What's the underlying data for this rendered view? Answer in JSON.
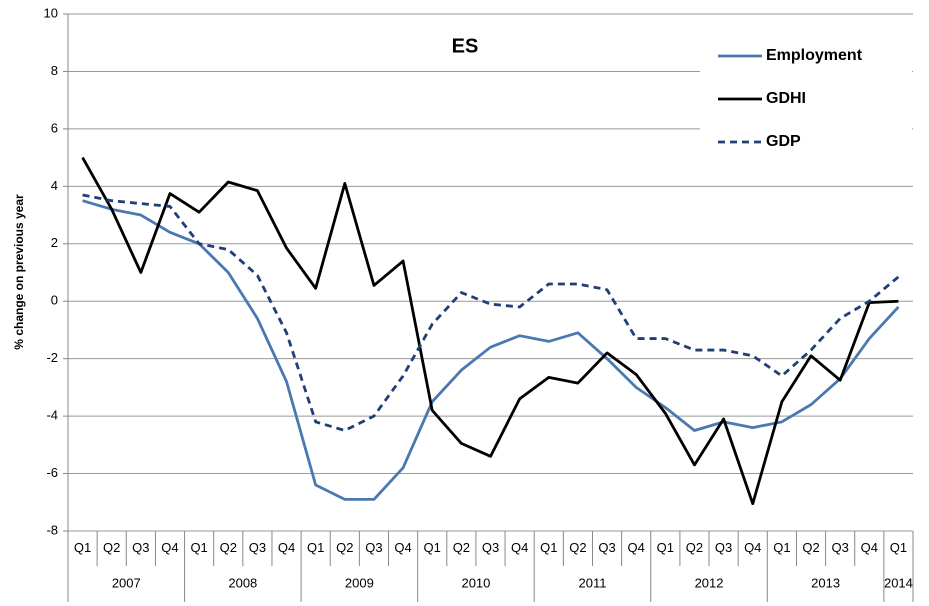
{
  "chart_data": {
    "type": "line",
    "title": "ES",
    "y_label": "% change on previous year",
    "categories": [
      "Q1",
      "Q2",
      "Q3",
      "Q4",
      "Q1",
      "Q2",
      "Q3",
      "Q4",
      "Q1",
      "Q2",
      "Q3",
      "Q4",
      "Q1",
      "Q2",
      "Q3",
      "Q4",
      "Q1",
      "Q2",
      "Q3",
      "Q4",
      "Q1",
      "Q2",
      "Q3",
      "Q4",
      "Q1",
      "Q2",
      "Q3",
      "Q4",
      "Q1"
    ],
    "year_labels": [
      "2007",
      "2008",
      "2009",
      "2010",
      "2011",
      "2012",
      "2013",
      "2014"
    ],
    "series": [
      {
        "name": "Employment",
        "color": "#4a78b0",
        "style": "solid",
        "values": [
          3.5,
          3.2,
          3.0,
          2.4,
          2.0,
          1.0,
          -0.6,
          -2.8,
          -6.4,
          -6.9,
          -6.9,
          -5.8,
          -3.5,
          -2.4,
          -1.6,
          -1.2,
          -1.4,
          -1.1,
          -2.0,
          -3.0,
          -3.7,
          -4.5,
          -4.2,
          -4.4,
          -4.2,
          -3.6,
          -2.7,
          -1.3,
          -0.2
        ]
      },
      {
        "name": "GDHI",
        "color": "#000000",
        "style": "solid",
        "values": [
          5.0,
          3.2,
          1.0,
          3.75,
          3.1,
          4.15,
          3.85,
          1.85,
          0.45,
          4.1,
          0.55,
          1.4,
          -3.8,
          -4.95,
          -5.4,
          -3.4,
          -2.65,
          -2.85,
          -1.8,
          -2.55,
          -3.9,
          -5.7,
          -4.1,
          -7.05,
          -3.5,
          -1.9,
          -2.75,
          -0.05,
          0.0
        ]
      },
      {
        "name": "GDP",
        "color": "#1f3f77",
        "style": "dashed",
        "values": [
          3.7,
          3.5,
          3.4,
          3.3,
          2.0,
          1.8,
          0.9,
          -1.1,
          -4.2,
          -4.5,
          -4.0,
          -2.6,
          -0.8,
          0.3,
          -0.1,
          -0.2,
          0.6,
          0.6,
          0.4,
          -1.3,
          -1.3,
          -1.7,
          -1.7,
          -1.9,
          -2.6,
          -1.7,
          -0.6,
          0.0,
          0.85
        ]
      }
    ],
    "ylim": [
      -8,
      10
    ],
    "yticks": [
      -8,
      -6,
      -4,
      -2,
      0,
      2,
      4,
      6,
      8,
      10
    ],
    "grid": true,
    "legend": "top-right"
  }
}
